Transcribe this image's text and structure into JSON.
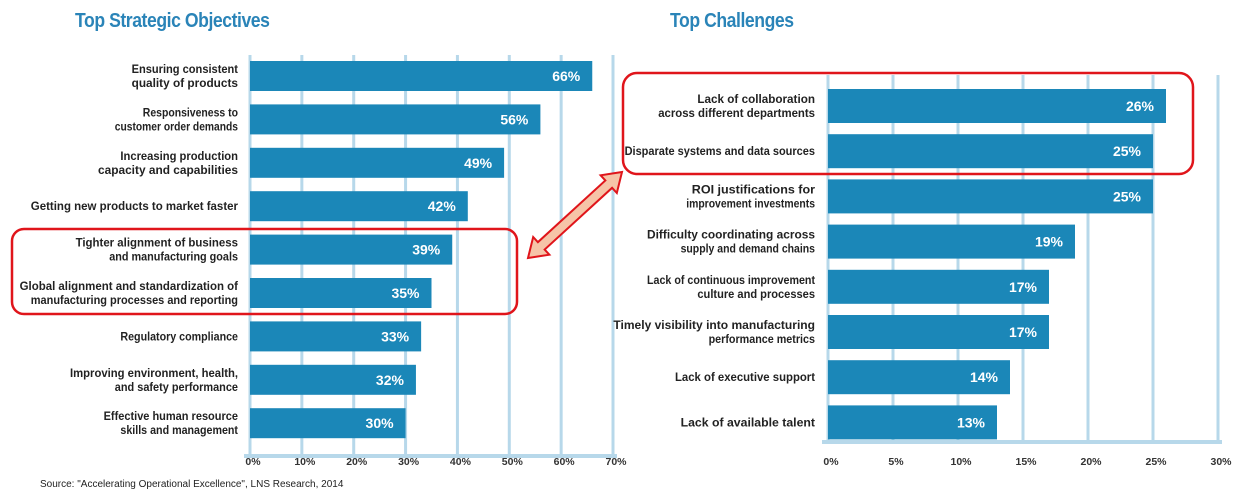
{
  "source": "Source: \"Accelerating Operational Excellence\", LNS Research, 2014",
  "colors": {
    "bar": "#1b87b8",
    "grid": "#b7d8ea",
    "title": "#2a84b8",
    "highlight": "#e0151b",
    "arrow_fill": "#f6c4a8",
    "label": "#222222",
    "value": "#ffffff"
  },
  "chart_data": [
    {
      "type": "bar",
      "orientation": "horizontal",
      "title": "Top Strategic Objectives",
      "xlabel": "",
      "ylabel": "",
      "xlim": [
        0,
        70
      ],
      "ticks": [
        "0%",
        "10%",
        "20%",
        "30%",
        "40%",
        "50%",
        "60%",
        "70%"
      ],
      "tick_values": [
        0,
        10,
        20,
        30,
        40,
        50,
        60,
        70
      ],
      "grid": true,
      "categories": [
        [
          "Ensuring consistent",
          "quality of products"
        ],
        [
          "Responsiveness to",
          "customer order demands"
        ],
        [
          "Increasing production",
          "capacity and capabilities"
        ],
        [
          "Getting new products to market faster"
        ],
        [
          "Tighter alignment of business",
          "and manufacturing goals"
        ],
        [
          "Global alignment and standardization of",
          "manufacturing processes and reporting"
        ],
        [
          "Regulatory compliance"
        ],
        [
          "Improving environment, health,",
          "and safety performance"
        ],
        [
          "Effective human resource",
          "skills and management"
        ]
      ],
      "values": [
        66,
        56,
        49,
        42,
        39,
        35,
        33,
        32,
        30
      ],
      "value_labels": [
        "66%",
        "56%",
        "49%",
        "42%",
        "39%",
        "35%",
        "33%",
        "32%",
        "30%"
      ],
      "highlighted": [
        4,
        5
      ]
    },
    {
      "type": "bar",
      "orientation": "horizontal",
      "title": "Top Challenges",
      "xlabel": "",
      "ylabel": "",
      "xlim": [
        0,
        30
      ],
      "ticks": [
        "0%",
        "5%",
        "10%",
        "15%",
        "20%",
        "25%",
        "30%"
      ],
      "tick_values": [
        0,
        5,
        10,
        15,
        20,
        25,
        30
      ],
      "grid": true,
      "categories": [
        [
          "Lack of collaboration",
          "across different departments"
        ],
        [
          "Disparate systems and data sources"
        ],
        [
          "ROI justifications for",
          "improvement investments"
        ],
        [
          "Difficulty coordinating across",
          "supply and demand chains"
        ],
        [
          "Lack of continuous improvement",
          "culture and processes"
        ],
        [
          "Timely visibility into manufacturing",
          "performance metrics"
        ],
        [
          "Lack of executive support"
        ],
        [
          "Lack of available talent"
        ]
      ],
      "values": [
        26,
        25,
        25,
        19,
        17,
        17,
        14,
        13
      ],
      "value_labels": [
        "26%",
        "25%",
        "25%",
        "19%",
        "17%",
        "17%",
        "14%",
        "13%"
      ],
      "highlighted": [
        0,
        1
      ]
    }
  ],
  "annotation": "double-headed arrow linking highlighted objectives to highlighted challenges"
}
